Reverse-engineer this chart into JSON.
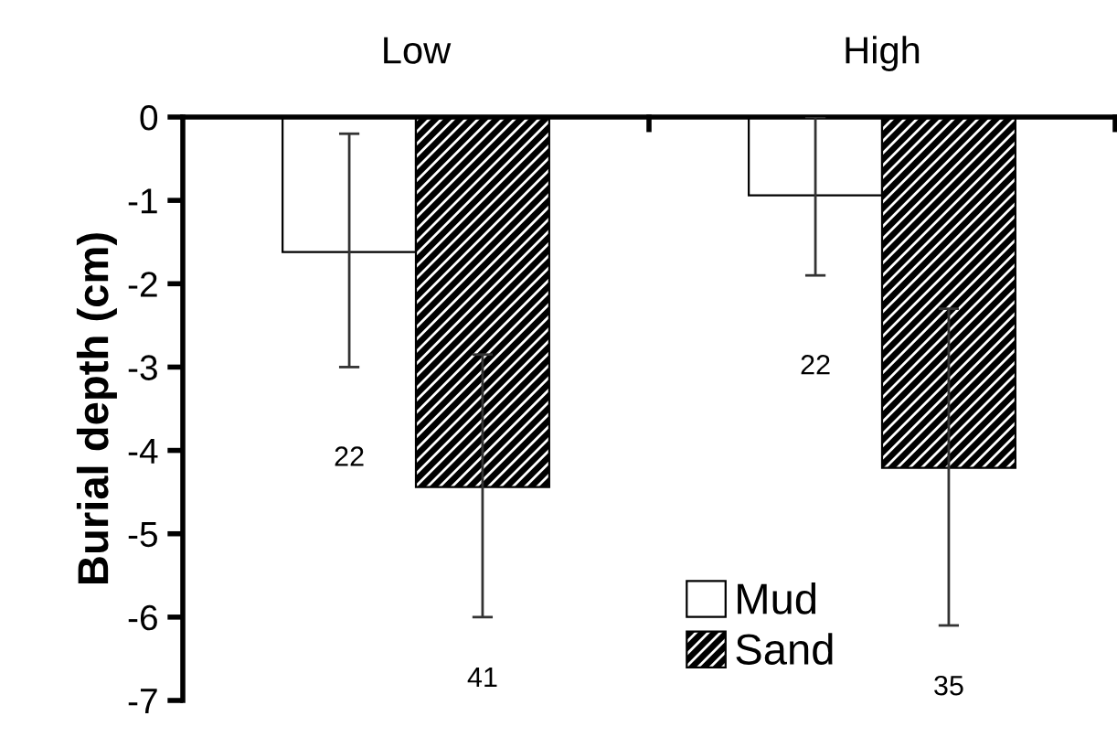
{
  "chart_data": {
    "type": "bar",
    "ylabel": "Burial depth (cm)",
    "categories": [
      "Low",
      "High"
    ],
    "series": [
      {
        "name": "Mud",
        "color": "#ffffff",
        "values": [
          -1.62,
          -0.94
        ],
        "errors": [
          [
            -3.0,
            -0.2
          ],
          [
            -1.9,
            0
          ]
        ]
      },
      {
        "name": "Sand",
        "color": "#000000",
        "values": [
          -4.44,
          -4.21
        ],
        "errors": [
          [
            -6.0,
            -2.85
          ],
          [
            -6.1,
            -2.3
          ]
        ]
      }
    ],
    "annotations": [
      "22",
      "41",
      "22",
      "35"
    ],
    "ylim": [
      -7,
      0
    ],
    "yticks": [
      -7,
      -6,
      -5,
      -4,
      -3,
      -2,
      -1,
      0
    ],
    "legend": "bottom",
    "grid": false
  }
}
